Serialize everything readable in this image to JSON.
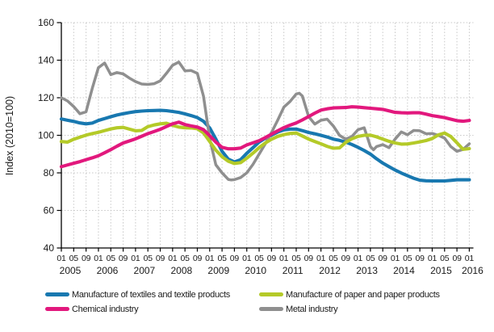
{
  "page": {
    "background": "#ffffff",
    "text_color": "#1a1a1a"
  },
  "chart_data": {
    "type": "line",
    "title": "",
    "ylabel": "Index (2010=100)",
    "ylim": [
      40,
      160
    ],
    "yticks": [
      40,
      60,
      80,
      100,
      120,
      140,
      160
    ],
    "x_tick_month_labels": [
      "01",
      "05",
      "09"
    ],
    "years": [
      "2005",
      "2006",
      "2007",
      "2008",
      "2009",
      "2010",
      "2011",
      "2012",
      "2013",
      "2014",
      "2015",
      "2016"
    ],
    "x_axis_note": "x = months since 2005-01; ticks every 4 months (01,05,09); range 2005-01 to 2016-01",
    "grid": true,
    "gridline_color": "#c9c9c9",
    "axis_color": "#000000",
    "legend_position": "bottom",
    "series": [
      {
        "name": "Manufacture of textiles and textile products",
        "color": "#1878b0",
        "points": [
          [
            0,
            108.7
          ],
          [
            2,
            108.0
          ],
          [
            4,
            107.4
          ],
          [
            6,
            106.6
          ],
          [
            8,
            106.1
          ],
          [
            10,
            106.5
          ],
          [
            12,
            107.9
          ],
          [
            14,
            108.9
          ],
          [
            16,
            109.9
          ],
          [
            18,
            110.8
          ],
          [
            20,
            111.5
          ],
          [
            22,
            112.1
          ],
          [
            24,
            112.6
          ],
          [
            26,
            112.9
          ],
          [
            28,
            113.1
          ],
          [
            30,
            113.2
          ],
          [
            32,
            113.3
          ],
          [
            34,
            113.1
          ],
          [
            36,
            112.7
          ],
          [
            38,
            112.2
          ],
          [
            40,
            111.4
          ],
          [
            42,
            110.5
          ],
          [
            44,
            109.4
          ],
          [
            46,
            107.5
          ],
          [
            48,
            103.9
          ],
          [
            50,
            98.0
          ],
          [
            52,
            91.5
          ],
          [
            54,
            87.3
          ],
          [
            56,
            85.8
          ],
          [
            58,
            87.0
          ],
          [
            60,
            90.4
          ],
          [
            62,
            93.4
          ],
          [
            64,
            96.4
          ],
          [
            66,
            98.5
          ],
          [
            68,
            100.1
          ],
          [
            70,
            101.7
          ],
          [
            72,
            102.9
          ],
          [
            74,
            103.3
          ],
          [
            76,
            103.3
          ],
          [
            78,
            102.5
          ],
          [
            80,
            101.5
          ],
          [
            82,
            100.8
          ],
          [
            84,
            100.0
          ],
          [
            86,
            99.1
          ],
          [
            88,
            98.0
          ],
          [
            90,
            97.3
          ],
          [
            92,
            96.4
          ],
          [
            94,
            95.1
          ],
          [
            96,
            93.6
          ],
          [
            98,
            91.9
          ],
          [
            100,
            90.0
          ],
          [
            102,
            87.5
          ],
          [
            104,
            85.2
          ],
          [
            106,
            83.3
          ],
          [
            108,
            81.5
          ],
          [
            110,
            79.9
          ],
          [
            112,
            78.5
          ],
          [
            114,
            77.1
          ],
          [
            116,
            76.1
          ],
          [
            118,
            75.8
          ],
          [
            120,
            75.7
          ],
          [
            122,
            75.7
          ],
          [
            124,
            75.7
          ],
          [
            126,
            76.0
          ],
          [
            128,
            76.3
          ],
          [
            130,
            76.3
          ],
          [
            132,
            76.3
          ]
        ]
      },
      {
        "name": "Manufacture of paper and paper products",
        "color": "#b4ca28",
        "points": [
          [
            0,
            96.7
          ],
          [
            2,
            96.4
          ],
          [
            4,
            97.9
          ],
          [
            6,
            99.0
          ],
          [
            8,
            100.1
          ],
          [
            10,
            100.9
          ],
          [
            12,
            101.6
          ],
          [
            14,
            102.5
          ],
          [
            16,
            103.4
          ],
          [
            18,
            104.0
          ],
          [
            20,
            104.2
          ],
          [
            22,
            103.3
          ],
          [
            24,
            102.4
          ],
          [
            26,
            102.6
          ],
          [
            28,
            104.6
          ],
          [
            30,
            105.5
          ],
          [
            32,
            106.1
          ],
          [
            34,
            106.4
          ],
          [
            36,
            105.3
          ],
          [
            38,
            104.4
          ],
          [
            40,
            104.0
          ],
          [
            42,
            103.9
          ],
          [
            44,
            103.5
          ],
          [
            46,
            101.3
          ],
          [
            48,
            96.7
          ],
          [
            50,
            92.1
          ],
          [
            52,
            88.6
          ],
          [
            54,
            86.2
          ],
          [
            56,
            85.0
          ],
          [
            58,
            85.4
          ],
          [
            60,
            87.8
          ],
          [
            62,
            90.5
          ],
          [
            64,
            93.4
          ],
          [
            66,
            95.9
          ],
          [
            68,
            97.9
          ],
          [
            70,
            99.4
          ],
          [
            72,
            100.4
          ],
          [
            74,
            101.0
          ],
          [
            76,
            101.2
          ],
          [
            78,
            99.6
          ],
          [
            80,
            98.0
          ],
          [
            82,
            96.7
          ],
          [
            84,
            95.5
          ],
          [
            86,
            94.1
          ],
          [
            88,
            93.1
          ],
          [
            90,
            93.3
          ],
          [
            92,
            96.2
          ],
          [
            94,
            98.1
          ],
          [
            96,
            99.4
          ],
          [
            98,
            100.0
          ],
          [
            100,
            100.1
          ],
          [
            102,
            99.2
          ],
          [
            104,
            98.0
          ],
          [
            106,
            96.8
          ],
          [
            108,
            95.9
          ],
          [
            110,
            95.3
          ],
          [
            112,
            95.4
          ],
          [
            114,
            95.9
          ],
          [
            116,
            96.5
          ],
          [
            118,
            97.2
          ],
          [
            120,
            98.3
          ],
          [
            122,
            100.2
          ],
          [
            124,
            101.2
          ],
          [
            126,
            99.4
          ],
          [
            128,
            96.0
          ],
          [
            130,
            92.5
          ],
          [
            132,
            92.9
          ]
        ]
      },
      {
        "name": "Chemical industry",
        "color": "#e2187d",
        "points": [
          [
            0,
            83.3
          ],
          [
            2,
            84.2
          ],
          [
            4,
            85.1
          ],
          [
            6,
            86.0
          ],
          [
            8,
            87.0
          ],
          [
            10,
            88.0
          ],
          [
            12,
            89.1
          ],
          [
            14,
            90.7
          ],
          [
            16,
            92.4
          ],
          [
            18,
            94.2
          ],
          [
            20,
            95.9
          ],
          [
            22,
            97.0
          ],
          [
            24,
            98.1
          ],
          [
            26,
            99.5
          ],
          [
            28,
            100.9
          ],
          [
            30,
            102.0
          ],
          [
            32,
            103.2
          ],
          [
            34,
            104.7
          ],
          [
            36,
            106.1
          ],
          [
            38,
            107.0
          ],
          [
            40,
            105.7
          ],
          [
            42,
            105.0
          ],
          [
            44,
            104.4
          ],
          [
            46,
            103.0
          ],
          [
            48,
            99.8
          ],
          [
            50,
            96.4
          ],
          [
            52,
            93.6
          ],
          [
            54,
            92.8
          ],
          [
            56,
            92.8
          ],
          [
            58,
            93.2
          ],
          [
            60,
            94.9
          ],
          [
            62,
            96.0
          ],
          [
            64,
            97.1
          ],
          [
            66,
            98.8
          ],
          [
            68,
            100.6
          ],
          [
            70,
            102.4
          ],
          [
            72,
            104.1
          ],
          [
            74,
            105.4
          ],
          [
            76,
            106.6
          ],
          [
            78,
            108.2
          ],
          [
            80,
            110.0
          ],
          [
            82,
            111.8
          ],
          [
            84,
            113.4
          ],
          [
            86,
            114.1
          ],
          [
            88,
            114.6
          ],
          [
            90,
            114.7
          ],
          [
            92,
            114.8
          ],
          [
            94,
            115.2
          ],
          [
            96,
            115.0
          ],
          [
            98,
            114.7
          ],
          [
            100,
            114.4
          ],
          [
            102,
            114.1
          ],
          [
            104,
            113.8
          ],
          [
            106,
            113.0
          ],
          [
            108,
            112.2
          ],
          [
            110,
            112.0
          ],
          [
            112,
            111.9
          ],
          [
            114,
            112.0
          ],
          [
            116,
            112.0
          ],
          [
            118,
            111.3
          ],
          [
            120,
            110.5
          ],
          [
            122,
            110.0
          ],
          [
            124,
            109.4
          ],
          [
            126,
            108.6
          ],
          [
            128,
            107.8
          ],
          [
            130,
            107.5
          ],
          [
            132,
            107.9
          ]
        ]
      },
      {
        "name": "Metal industry",
        "color": "#8f8f8f",
        "points": [
          [
            0,
            120.0
          ],
          [
            2,
            118.3
          ],
          [
            4,
            115.3
          ],
          [
            6,
            111.5
          ],
          [
            8,
            112.5
          ],
          [
            10,
            125.0
          ],
          [
            12,
            136.0
          ],
          [
            14,
            138.5
          ],
          [
            16,
            132.3
          ],
          [
            18,
            133.4
          ],
          [
            20,
            132.7
          ],
          [
            22,
            130.5
          ],
          [
            24,
            128.6
          ],
          [
            26,
            127.3
          ],
          [
            28,
            127.1
          ],
          [
            30,
            127.5
          ],
          [
            32,
            129.0
          ],
          [
            34,
            133.0
          ],
          [
            36,
            137.3
          ],
          [
            38,
            139.0
          ],
          [
            40,
            134.3
          ],
          [
            42,
            134.5
          ],
          [
            44,
            133.0
          ],
          [
            46,
            120.8
          ],
          [
            48,
            98.3
          ],
          [
            50,
            84.3
          ],
          [
            52,
            80.0
          ],
          [
            54,
            76.5
          ],
          [
            55,
            76.2
          ],
          [
            56,
            76.4
          ],
          [
            58,
            77.5
          ],
          [
            60,
            80.0
          ],
          [
            62,
            84.5
          ],
          [
            64,
            90.0
          ],
          [
            66,
            95.5
          ],
          [
            68,
            101.5
          ],
          [
            70,
            108.0
          ],
          [
            72,
            115.0
          ],
          [
            74,
            118.0
          ],
          [
            76,
            122.0
          ],
          [
            77,
            122.4
          ],
          [
            78,
            120.9
          ],
          [
            80,
            110.0
          ],
          [
            82,
            106.0
          ],
          [
            84,
            108.0
          ],
          [
            86,
            108.6
          ],
          [
            88,
            105.0
          ],
          [
            90,
            100.0
          ],
          [
            92,
            98.0
          ],
          [
            94,
            99.3
          ],
          [
            96,
            103.0
          ],
          [
            98,
            104.0
          ],
          [
            99,
            99.0
          ],
          [
            100,
            94.0
          ],
          [
            101,
            92.3
          ],
          [
            102,
            94.0
          ],
          [
            104,
            95.0
          ],
          [
            106,
            93.4
          ],
          [
            108,
            98.0
          ],
          [
            110,
            101.8
          ],
          [
            112,
            100.3
          ],
          [
            114,
            102.6
          ],
          [
            116,
            102.4
          ],
          [
            118,
            100.8
          ],
          [
            120,
            101.0
          ],
          [
            122,
            100.0
          ],
          [
            124,
            98.5
          ],
          [
            126,
            94.0
          ],
          [
            128,
            91.5
          ],
          [
            130,
            92.5
          ],
          [
            132,
            95.5
          ]
        ]
      }
    ],
    "draw_order": [
      0,
      3,
      1,
      2
    ],
    "legend": {
      "rows": [
        [
          "Manufacture of textiles and textile products",
          "Manufacture of paper and paper products"
        ],
        [
          "Chemical industry",
          "Metal industry"
        ]
      ]
    }
  }
}
